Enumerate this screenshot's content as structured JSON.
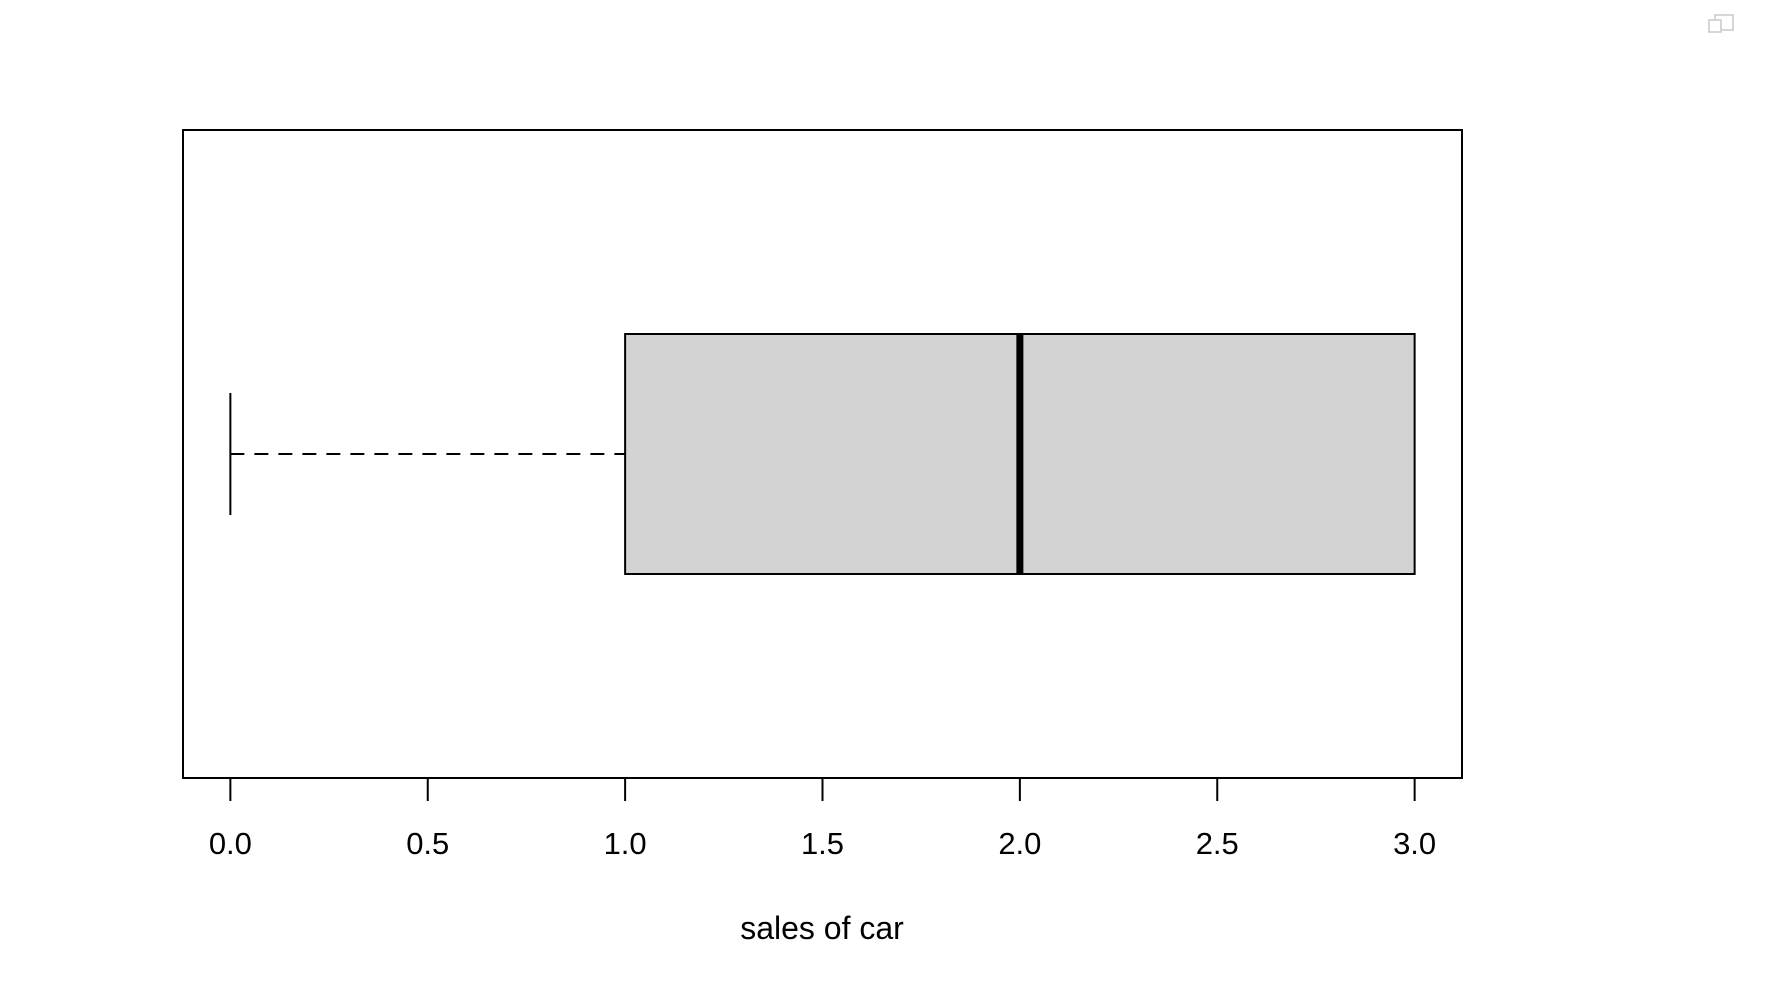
{
  "chart_data": {
    "type": "boxplot",
    "orientation": "horizontal",
    "title": "",
    "xlabel": "sales of car",
    "ylabel": "",
    "xlim": [
      -0.12,
      3.12
    ],
    "x_ticks": [
      0.0,
      0.5,
      1.0,
      1.5,
      2.0,
      2.5,
      3.0
    ],
    "x_tick_labels": [
      "0.0",
      "0.5",
      "1.0",
      "1.5",
      "2.0",
      "2.5",
      "3.0"
    ],
    "grid": false,
    "box": {
      "min": 0.0,
      "q1": 1.0,
      "median": 2.0,
      "q3": 3.0,
      "max": 3.0
    },
    "colors": {
      "box_fill": "#d3d3d3",
      "line": "#000000",
      "background": "#ffffff"
    }
  },
  "window": {
    "corner_icon": "window-restore-icon"
  }
}
